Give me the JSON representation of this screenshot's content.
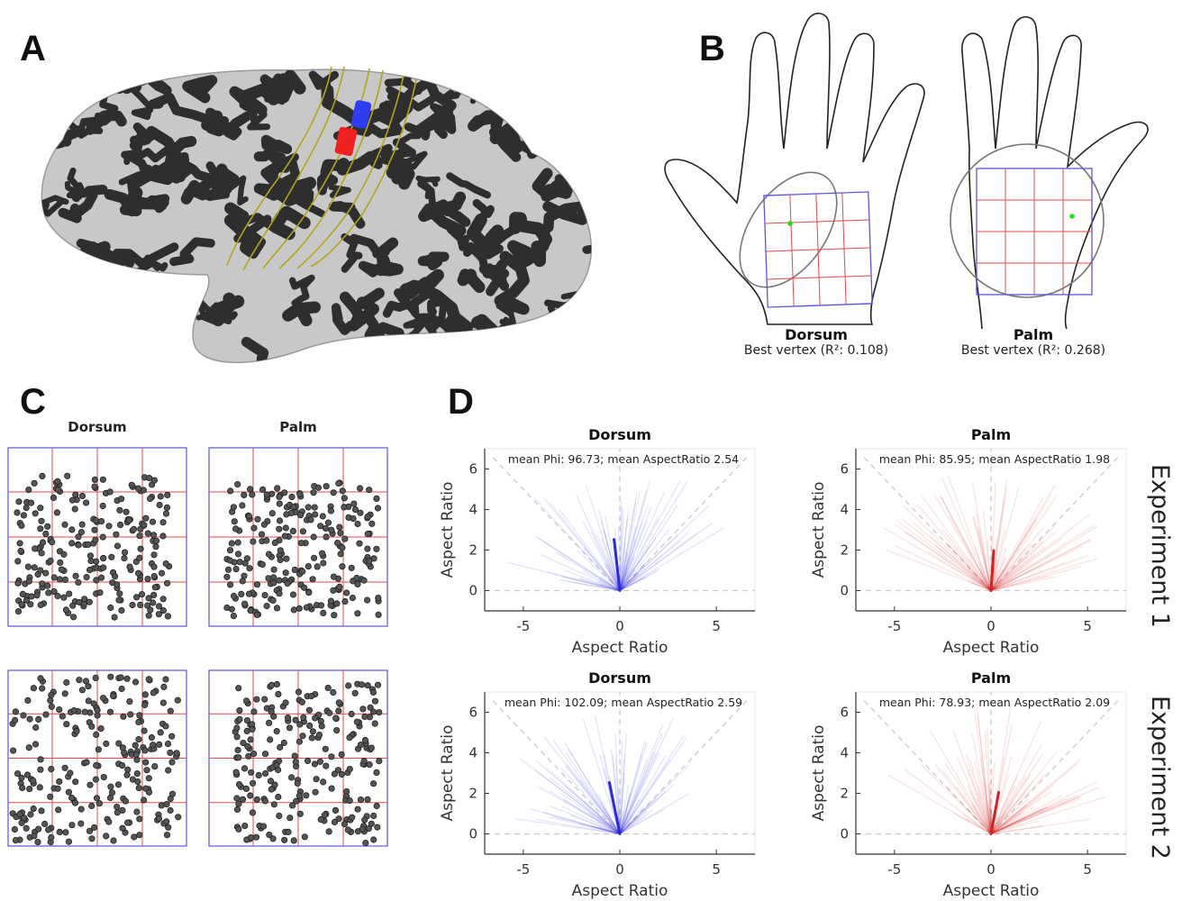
{
  "panels": {
    "a": {
      "letter": "A"
    },
    "b": {
      "letter": "B",
      "hands": [
        {
          "title": "Dorsum",
          "subtitle": "Best vertex (R²: 0.108)"
        },
        {
          "title": "Palm",
          "subtitle": "Best vertex (R²: 0.268)"
        }
      ]
    },
    "c": {
      "letter": "C",
      "column_titles": [
        "Dorsum",
        "Palm"
      ]
    },
    "d": {
      "letter": "D",
      "row_labels": [
        "Experiment 1",
        "Experiment 2"
      ]
    }
  },
  "colors": {
    "brain_dark": "#2e2e2e",
    "brain_light": "#c8c8c8",
    "roi_outline": "#b5a319",
    "roi_blue": "#2f3df0",
    "roi_red": "#f02020",
    "grid_red": "#e04a4a",
    "box_blue": "#5a55d6",
    "dorsum_series": "#2a2ad8",
    "palm_series": "#d42020"
  },
  "chart_data": [
    {
      "type": "line",
      "id": "d-exp1-dorsum",
      "title": "Dorsum",
      "annotation": "mean Phi: 96.73; mean AspectRatio 2.54",
      "xlabel": "Aspect Ratio",
      "ylabel": "Aspect Ratio",
      "xlim": [
        -7,
        7
      ],
      "ylim": [
        -1,
        7
      ],
      "xticks": [
        -5,
        0,
        5
      ],
      "yticks": [
        0,
        2,
        4,
        6
      ],
      "color": "#2a2ad8",
      "mean_vector": {
        "phi_deg": 96.73,
        "aspect_ratio": 2.54
      }
    },
    {
      "type": "line",
      "id": "d-exp1-palm",
      "title": "Palm",
      "annotation": "mean Phi: 85.95; mean AspectRatio 1.98",
      "xlabel": "Aspect Ratio",
      "ylabel": "Aspect Ratio",
      "xlim": [
        -7,
        7
      ],
      "ylim": [
        -1,
        7
      ],
      "xticks": [
        -5,
        0,
        5
      ],
      "yticks": [
        0,
        2,
        4,
        6
      ],
      "color": "#d42020",
      "mean_vector": {
        "phi_deg": 85.95,
        "aspect_ratio": 1.98
      }
    },
    {
      "type": "line",
      "id": "d-exp2-dorsum",
      "title": "Dorsum",
      "annotation": "mean Phi: 102.09; mean AspectRatio 2.59",
      "xlabel": "Aspect Ratio",
      "ylabel": "Aspect Ratio",
      "xlim": [
        -7,
        7
      ],
      "ylim": [
        -1,
        7
      ],
      "xticks": [
        -5,
        0,
        5
      ],
      "yticks": [
        0,
        2,
        4,
        6
      ],
      "color": "#2a2ad8",
      "mean_vector": {
        "phi_deg": 102.09,
        "aspect_ratio": 2.59
      }
    },
    {
      "type": "line",
      "id": "d-exp2-palm",
      "title": "Palm",
      "annotation": "mean Phi: 78.93; mean AspectRatio 2.09",
      "xlabel": "Aspect Ratio",
      "ylabel": "Aspect Ratio",
      "xlim": [
        -7,
        7
      ],
      "ylim": [
        -1,
        7
      ],
      "xticks": [
        -5,
        0,
        5
      ],
      "yticks": [
        0,
        2,
        4,
        6
      ],
      "color": "#d42020",
      "mean_vector": {
        "phi_deg": 78.93,
        "aspect_ratio": 2.09
      }
    }
  ]
}
